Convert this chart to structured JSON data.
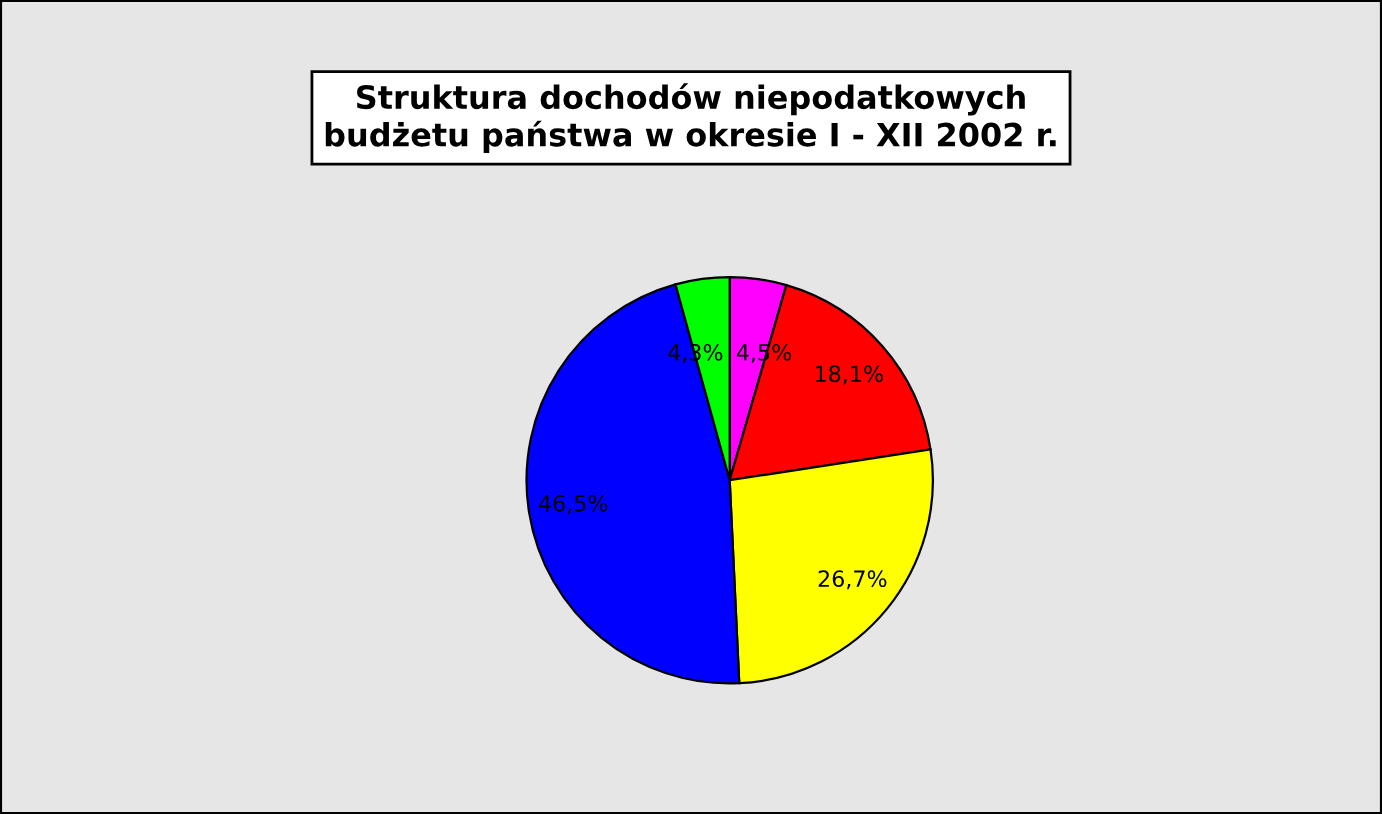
{
  "chart_data": {
    "type": "pie",
    "title": "Struktura dochodów niepodatkowych\nbudżetu państwa w okresie I - XII 2002 r.",
    "categories": [
      null,
      null,
      null,
      null,
      null
    ],
    "values": [
      4.5,
      18.1,
      26.7,
      46.5,
      4.3
    ],
    "colors": [
      "#ff00ff",
      "#ff0000",
      "#ffff00",
      "#0000ff",
      "#00ff00"
    ],
    "value_labels": [
      "4,5%",
      "18,1%",
      "26,7%",
      "46,5%",
      "4,3%"
    ]
  }
}
